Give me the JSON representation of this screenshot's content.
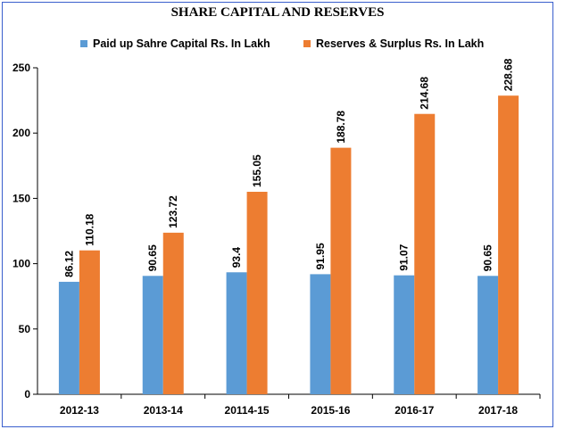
{
  "chart_data": {
    "type": "bar",
    "title": "SHARE CAPITAL AND RESERVES",
    "categories": [
      "2012-13",
      "2013-14",
      "20114-15",
      "2015-16",
      "2016-17",
      "2017-18"
    ],
    "series": [
      {
        "name": "Paid up Sahre Capital Rs. In Lakh",
        "color": "#5b9bd5",
        "values": [
          86.12,
          90.65,
          93.4,
          91.95,
          91.07,
          90.65
        ],
        "labels": [
          "86.12",
          "90.65",
          "93.4",
          "91.95",
          "91.07",
          "90.65"
        ]
      },
      {
        "name": "Reserves & Surplus Rs. In Lakh",
        "color": "#ed7d31",
        "values": [
          110.18,
          123.72,
          155.05,
          188.78,
          214.68,
          228.68
        ],
        "labels": [
          "110.18",
          "123.72",
          "155.05",
          "188.78",
          "214.68",
          "228.68"
        ]
      }
    ],
    "xlabel": "",
    "ylabel": "",
    "ylim": [
      0,
      250
    ],
    "yticks": [
      "0",
      "50",
      "100",
      "150",
      "200",
      "250"
    ],
    "grid": false,
    "legend": "top"
  }
}
